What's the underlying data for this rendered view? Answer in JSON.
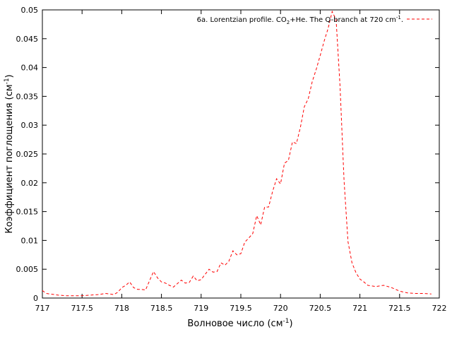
{
  "chart_data": {
    "type": "line",
    "xlabel": "Волновое число (см",
    "xlabel_sup": "-1",
    "xlabel_tail": ")",
    "ylabel": "Коэффициент поглощения (см",
    "ylabel_sup": "-1",
    "ylabel_tail": ")",
    "xlim": [
      717,
      722
    ],
    "ylim": [
      0,
      0.05
    ],
    "x_ticks": [
      "717",
      "717.5",
      "718",
      "718.5",
      "719",
      "719.5",
      "720",
      "720.5",
      "721",
      "721.5",
      "722"
    ],
    "y_ticks": [
      "0",
      "0.005",
      "0.01",
      "0.015",
      "0.02",
      "0.025",
      "0.03",
      "0.035",
      "0.04",
      "0.045",
      "0.05"
    ],
    "grid": false,
    "legend_position": "top-right",
    "legend": {
      "part1": "6a. Lorentzian profile. CO",
      "sub": "2",
      "part2": "+He. The Q-branch at 720 cm",
      "sup": "-1",
      "part3": "."
    },
    "series": [
      {
        "color": "#ff0000",
        "style": "dashed",
        "x": [
          717.0,
          717.05,
          717.1,
          717.2,
          717.3,
          717.4,
          717.5,
          717.6,
          717.7,
          717.8,
          717.9,
          717.95,
          718.0,
          718.05,
          718.1,
          718.15,
          718.2,
          718.25,
          718.3,
          718.35,
          718.4,
          718.45,
          718.5,
          718.55,
          718.6,
          718.65,
          718.7,
          718.75,
          718.8,
          718.85,
          718.9,
          718.95,
          719.0,
          719.05,
          719.1,
          719.15,
          719.2,
          719.25,
          719.3,
          719.35,
          719.4,
          719.45,
          719.5,
          719.55,
          719.6,
          719.65,
          719.7,
          719.75,
          719.8,
          719.85,
          719.9,
          719.95,
          720.0,
          720.05,
          720.1,
          720.15,
          720.2,
          720.25,
          720.3,
          720.35,
          720.4,
          720.45,
          720.5,
          720.55,
          720.6,
          720.65,
          720.7,
          720.75,
          720.8,
          720.85,
          720.9,
          720.95,
          721.0,
          721.05,
          721.1,
          721.2,
          721.3,
          721.4,
          721.5,
          721.6,
          721.7,
          721.8,
          721.9
        ],
        "y": [
          0.0013,
          0.0008,
          0.0007,
          0.0005,
          0.0004,
          0.0004,
          0.0004,
          0.0005,
          0.0006,
          0.0008,
          0.0006,
          0.001,
          0.0018,
          0.0022,
          0.0028,
          0.0018,
          0.0015,
          0.0015,
          0.0014,
          0.003,
          0.0046,
          0.0035,
          0.0028,
          0.0026,
          0.0022,
          0.0019,
          0.0025,
          0.0031,
          0.0026,
          0.0027,
          0.0038,
          0.003,
          0.0032,
          0.0041,
          0.005,
          0.0045,
          0.0046,
          0.0061,
          0.0057,
          0.0064,
          0.0082,
          0.0075,
          0.0077,
          0.0097,
          0.0104,
          0.0112,
          0.0143,
          0.0127,
          0.0158,
          0.0158,
          0.0185,
          0.0207,
          0.0198,
          0.0234,
          0.0239,
          0.0271,
          0.0268,
          0.0296,
          0.0332,
          0.0346,
          0.0376,
          0.0397,
          0.0421,
          0.0446,
          0.0468,
          0.0497,
          0.0483,
          0.0367,
          0.0205,
          0.0098,
          0.0061,
          0.0044,
          0.0033,
          0.0028,
          0.0022,
          0.002,
          0.0022,
          0.0018,
          0.0012,
          0.0009,
          0.0008,
          0.0008,
          0.0007
        ]
      }
    ]
  }
}
